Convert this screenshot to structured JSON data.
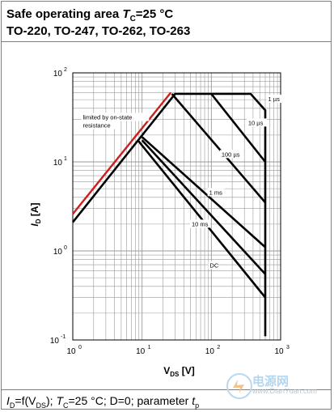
{
  "header": {
    "line1_prefix": "Safe operating area ",
    "line1_sym": "T",
    "line1_sub": "C",
    "line1_suffix": "=25 °C",
    "line2": "TO-220, TO-247, TO-262, TO-263"
  },
  "footer": {
    "p1": "I",
    "p1_sub": "D",
    "p2": "=f(V",
    "p2_sub": "DS",
    "p3": "); ",
    "p4": "T",
    "p4_sub": "C",
    "p5": "=25 °C; D=0; parameter ",
    "p6": "t",
    "p6_sub": "p"
  },
  "watermark": {
    "text": "电源网",
    "url": "www.DianYuan.com"
  },
  "colors": {
    "limit_line": "#cc1f1f",
    "curve": "#000000",
    "grid": "#9a9a9a"
  },
  "chart_data": {
    "type": "line",
    "xscale": "log",
    "yscale": "log",
    "xlim": [
      1,
      1000
    ],
    "ylim": [
      0.1,
      100
    ],
    "grid": true,
    "xlabel_main": "V",
    "xlabel_sub": "DS",
    "xlabel_unit": " [V]",
    "ylabel_main": "I",
    "ylabel_sub": "D",
    "ylabel_unit": " [A]",
    "xticks": [
      {
        "value": 1,
        "base": "10",
        "exp": "0"
      },
      {
        "value": 10,
        "base": "10",
        "exp": "1"
      },
      {
        "value": 100,
        "base": "10",
        "exp": "2"
      },
      {
        "value": 1000,
        "base": "10",
        "exp": "3"
      }
    ],
    "yticks": [
      {
        "value": 0.1,
        "base": "10",
        "exp": "-1"
      },
      {
        "value": 1,
        "base": "10",
        "exp": "0"
      },
      {
        "value": 10,
        "base": "10",
        "exp": "1"
      },
      {
        "value": 100,
        "base": "10",
        "exp": "2"
      }
    ],
    "annotations": [
      {
        "lines": [
          "limited by on-state",
          "resistance"
        ],
        "x": 1.4,
        "y": 30
      },
      {
        "lines": [
          "1 µs"
        ],
        "x": 660,
        "y": 48
      },
      {
        "lines": [
          "10 µs"
        ],
        "x": 340,
        "y": 26
      },
      {
        "lines": [
          "100 µs"
        ],
        "x": 140,
        "y": 11.5
      },
      {
        "lines": [
          "1 ms"
        ],
        "x": 93,
        "y": 4.3
      },
      {
        "lines": [
          "10 ms"
        ],
        "x": 52,
        "y": 1.9
      },
      {
        "lines": [
          "DC"
        ],
        "x": 95,
        "y": 0.65
      }
    ],
    "series": [
      {
        "name": "1 µs",
        "points": [
          [
            1,
            2.1
          ],
          [
            30,
            58
          ],
          [
            370,
            58
          ],
          [
            600,
            38
          ],
          [
            600,
            0.11
          ]
        ]
      },
      {
        "name": "10 µs",
        "points": [
          [
            100,
            58
          ],
          [
            600,
            10
          ]
        ]
      },
      {
        "name": "100 µs",
        "points": [
          [
            27,
            58
          ],
          [
            600,
            3.5
          ]
        ]
      },
      {
        "name": "1 ms",
        "points": [
          [
            10,
            19
          ],
          [
            600,
            1.1
          ]
        ]
      },
      {
        "name": "10 ms",
        "points": [
          [
            10,
            17.5
          ],
          [
            600,
            0.55
          ]
        ]
      },
      {
        "name": "DC",
        "points": [
          [
            8.7,
            17.5
          ],
          [
            600,
            0.3
          ]
        ]
      }
    ],
    "limit_line": {
      "points": [
        [
          1,
          2.6
        ],
        [
          26,
          60
        ]
      ]
    }
  }
}
